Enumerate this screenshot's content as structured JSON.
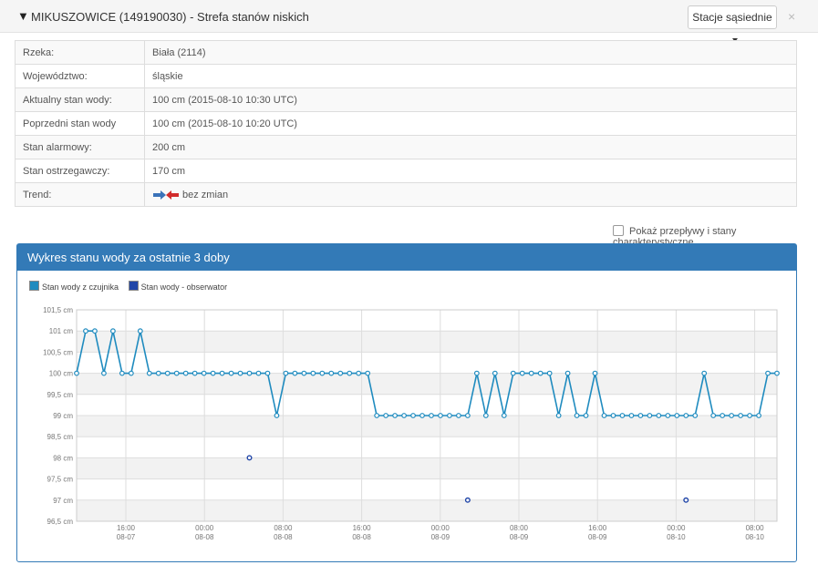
{
  "header": {
    "title": "MIKUSZOWICE (149190030) - Strefa stanów niskich",
    "neighbours_button": "Stacje sąsiednie",
    "close": "×"
  },
  "info_rows": [
    {
      "label": "Rzeka:",
      "value": "Biała (2114)"
    },
    {
      "label": "Województwo:",
      "value": "śląskie"
    },
    {
      "label": "Aktualny stan wody:",
      "value": "100 cm (2015-08-10 10:30 UTC)"
    },
    {
      "label": "Poprzedni stan wody",
      "value": "100 cm (2015-08-10 10:20 UTC)"
    },
    {
      "label": "Stan alarmowy:",
      "value": "200 cm"
    },
    {
      "label": "Stan ostrzegawczy:",
      "value": "170 cm"
    },
    {
      "label": "Trend:",
      "value": "bez zmian"
    }
  ],
  "checkbox_label": "Pokaż przepływy i stany charakterystyczne",
  "chart_panel_title": "Wykres stanu wody za ostatnie 3 doby",
  "colors": {
    "sensor": "#1f8bbf",
    "observer": "#2146a8",
    "panel": "#337ab7",
    "trend_right": "#3b73b9",
    "trend_left": "#d22b2b"
  },
  "chart_data": {
    "type": "line",
    "legend": [
      "Stan wody z czujnika",
      "Stan wody - obserwator"
    ],
    "ylim": [
      96.5,
      101.5
    ],
    "yticks": [
      "101,5 cm",
      "101 cm",
      "100,5 cm",
      "100 cm",
      "99,5 cm",
      "99 cm",
      "98,5 cm",
      "98 cm",
      "97,5 cm",
      "97 cm",
      "96,5 cm"
    ],
    "xticks": [
      {
        "time": "16:00",
        "date": "08-07"
      },
      {
        "time": "00:00",
        "date": "08-08"
      },
      {
        "time": "08:00",
        "date": "08-08"
      },
      {
        "time": "16:00",
        "date": "08-08"
      },
      {
        "time": "00:00",
        "date": "08-09"
      },
      {
        "time": "08:00",
        "date": "08-09"
      },
      {
        "time": "16:00",
        "date": "08-09"
      },
      {
        "time": "00:00",
        "date": "08-10"
      },
      {
        "time": "08:00",
        "date": "08-10"
      }
    ],
    "series": [
      {
        "name": "Stan wody z czujnika",
        "values": [
          100,
          101,
          101,
          100,
          101,
          100,
          100,
          101,
          100,
          100,
          100,
          100,
          100,
          100,
          100,
          100,
          100,
          100,
          100,
          100,
          100,
          100,
          99,
          100,
          100,
          100,
          100,
          100,
          100,
          100,
          100,
          100,
          100,
          99,
          99,
          99,
          99,
          99,
          99,
          99,
          99,
          99,
          99,
          99,
          100,
          99,
          100,
          99,
          100,
          100,
          100,
          100,
          100,
          99,
          100,
          99,
          99,
          100,
          99,
          99,
          99,
          99,
          99,
          99,
          99,
          99,
          99,
          99,
          99,
          100,
          99,
          99,
          99,
          99,
          99,
          99,
          100,
          100
        ]
      },
      {
        "name": "Stan wody - obserwator",
        "points": [
          {
            "i": 19,
            "y": 98
          },
          {
            "i": 43,
            "y": 97
          },
          {
            "i": 67,
            "y": 97
          }
        ]
      }
    ]
  }
}
